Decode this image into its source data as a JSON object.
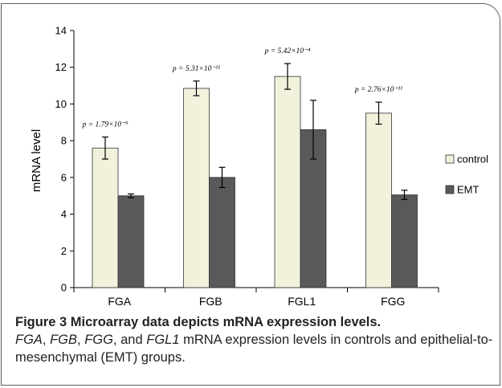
{
  "chart_data": {
    "type": "bar",
    "categories": [
      "FGA",
      "FGB",
      "FGL1",
      "FGG"
    ],
    "series": [
      {
        "name": "control",
        "values": [
          7.6,
          10.85,
          11.5,
          9.5
        ],
        "errors": [
          0.6,
          0.4,
          0.7,
          0.6
        ],
        "color": "#f1f1dc"
      },
      {
        "name": "EMT",
        "values": [
          5.0,
          6.0,
          8.6,
          5.05
        ],
        "errors": [
          0.1,
          0.55,
          1.6,
          0.25
        ],
        "color": "#595959"
      }
    ],
    "annotations": [
      "p = 1.79×10⁻⁹",
      "p = 5.31×10⁻¹¹",
      "p = 5.42×10⁻⁴",
      "p = 2.76×10⁻¹¹"
    ],
    "xlabel": "",
    "ylabel": "mRNA level",
    "ylim": [
      0,
      14
    ],
    "yticks": [
      0,
      2,
      4,
      6,
      8,
      10,
      12,
      14
    ],
    "grid": false,
    "legend_position": "right"
  },
  "caption": {
    "title": "Figure 3 Microarray data depicts mRNA expression levels.",
    "genes": [
      "FGA",
      "FGB",
      "FGG",
      "FGL1"
    ],
    "sep1": ", ",
    "sep2": ", ",
    "sep3": ", and ",
    "rest": " mRNA expression levels in controls and epithelial-to-mesenchymal (EMT) groups."
  },
  "colors": {
    "border": "#5c5c5c",
    "axis": "#000000"
  }
}
